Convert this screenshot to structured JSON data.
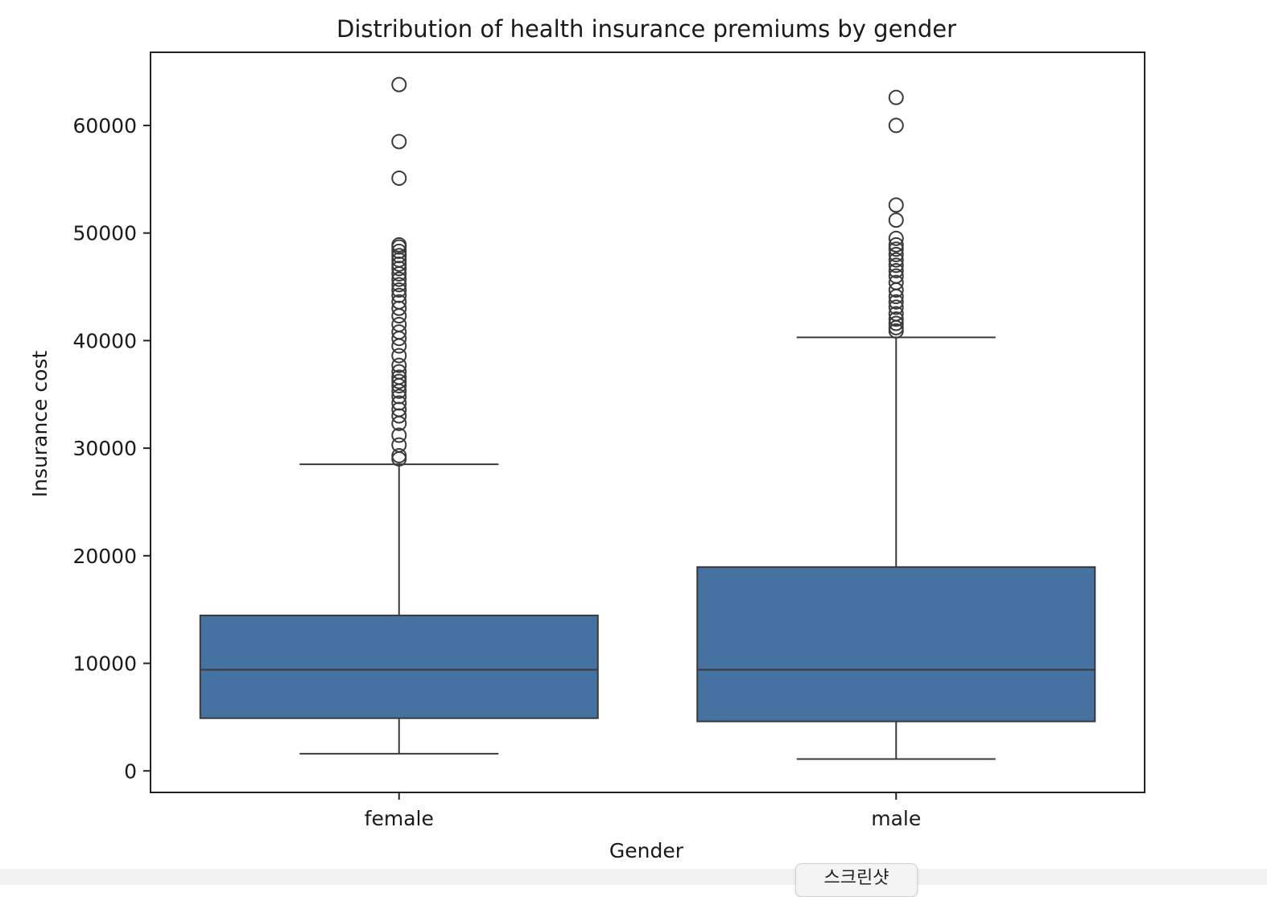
{
  "chart_data": {
    "type": "box",
    "title": "Distribution of health insurance premiums by gender",
    "xlabel": "Gender",
    "ylabel": "Insurance cost",
    "categories": [
      "female",
      "male"
    ],
    "ylim": [
      -2000,
      66800
    ],
    "yticks": [
      0,
      10000,
      20000,
      30000,
      40000,
      50000,
      60000
    ],
    "ytick_labels": [
      "0",
      "10000",
      "20000",
      "30000",
      "40000",
      "50000",
      "60000"
    ],
    "box_color": "#4572a0",
    "line_color": "#3a3a3a",
    "grid": false,
    "legend": false,
    "boxes": [
      {
        "category": "female",
        "whisker_low": 1600,
        "q1": 4900,
        "median": 9400,
        "q3": 14450,
        "whisker_high": 28500,
        "outliers": [
          63800,
          58500,
          55100,
          48900,
          48700,
          48300,
          47900,
          47500,
          47100,
          46700,
          46200,
          45700,
          45200,
          44700,
          44200,
          43600,
          43000,
          42300,
          41500,
          40800,
          40200,
          39500,
          38600,
          37700,
          37100,
          36600,
          36200,
          35800,
          35300,
          34800,
          34200,
          33600,
          33000,
          32300,
          31200,
          30300,
          29300,
          29000
        ]
      },
      {
        "category": "male",
        "whisker_low": 1100,
        "q1": 4600,
        "median": 9400,
        "q3": 18950,
        "whisker_high": 40300,
        "outliers": [
          62600,
          60000,
          52600,
          51200,
          49500,
          48900,
          48500,
          48000,
          47500,
          47000,
          46500,
          46000,
          45400,
          44700,
          44100,
          43600,
          43100,
          42500,
          42000,
          41600,
          41200,
          40900
        ]
      }
    ]
  },
  "overlay": {
    "screenshot_button_label": "스크린샷"
  }
}
